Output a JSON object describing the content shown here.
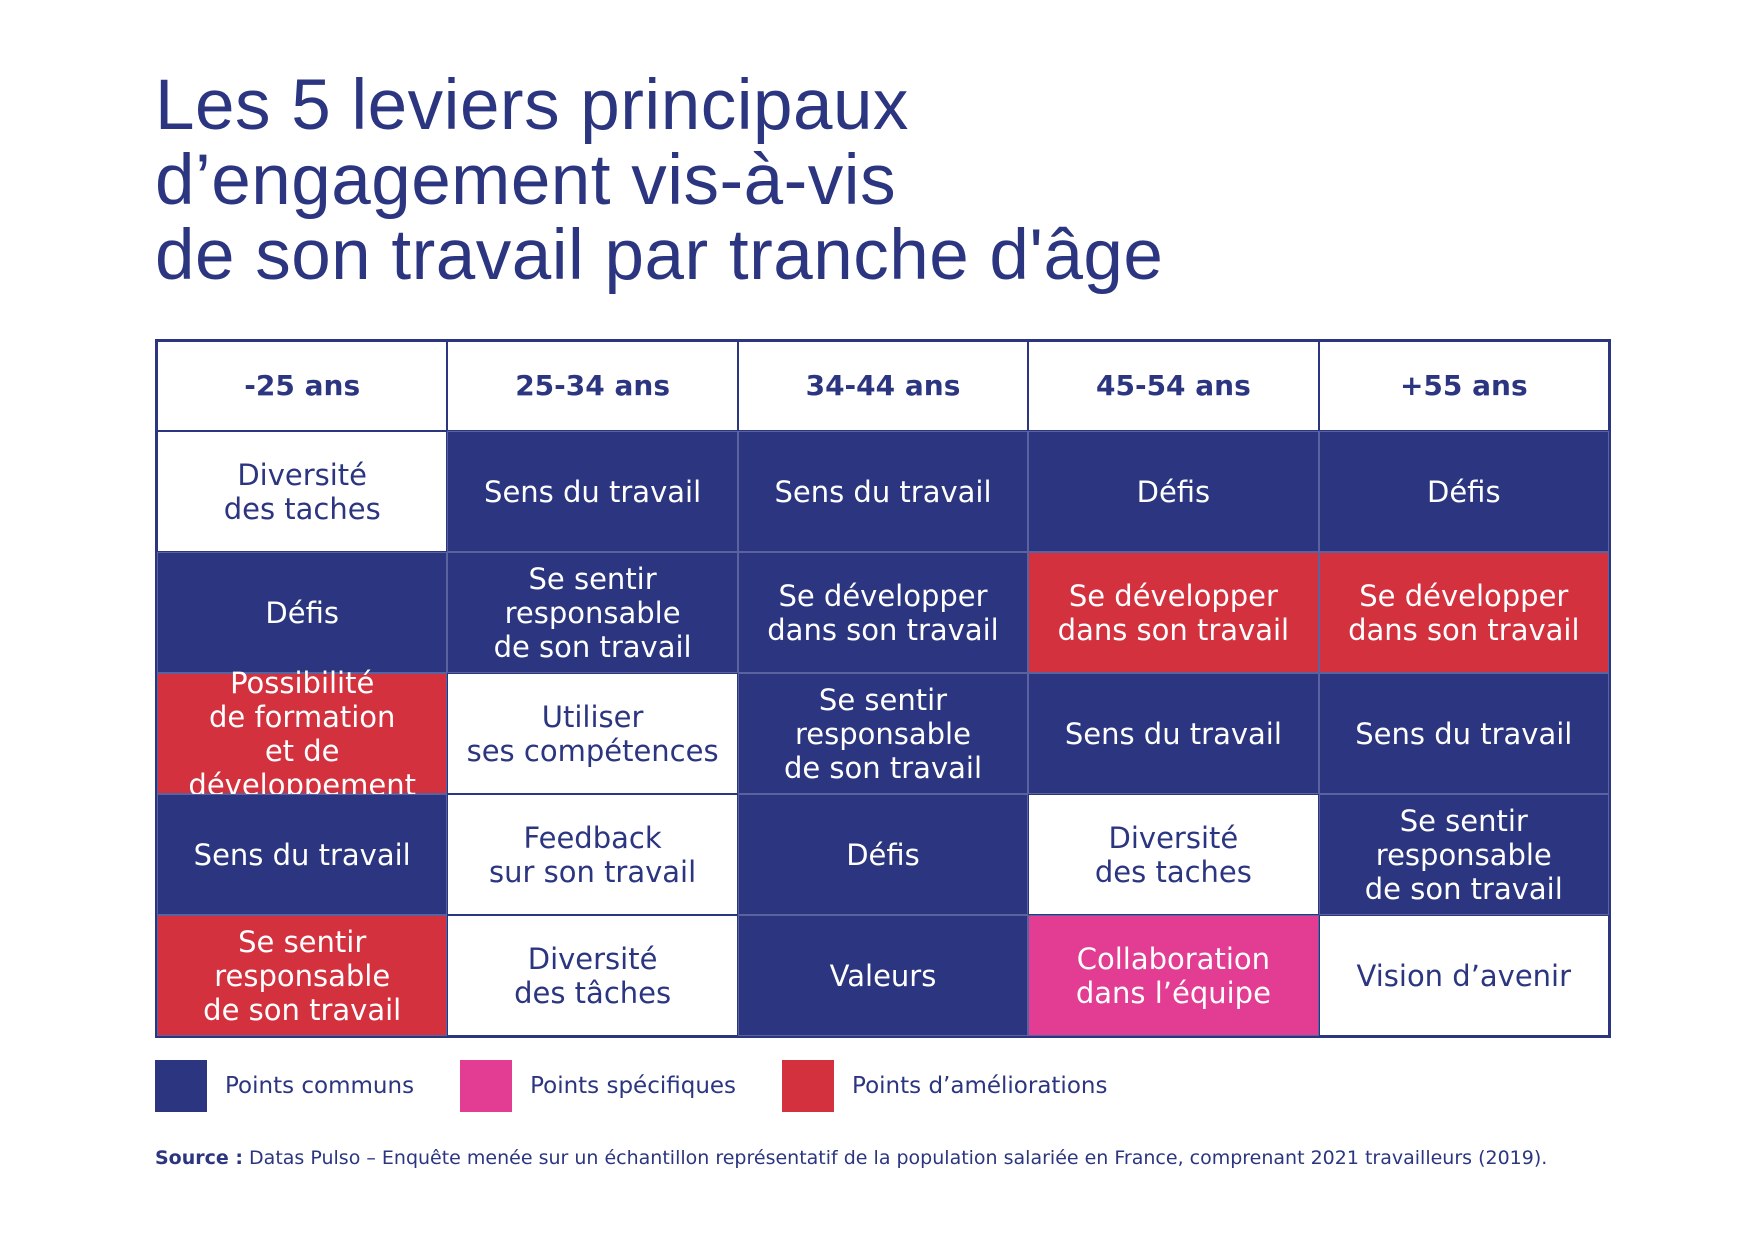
{
  "title": {
    "lines": [
      "Les 5 leviers principaux",
      "d’engagement vis-à-vis",
      "de son travail par tranche d'âge"
    ]
  },
  "colors": {
    "navy": "#2b3580",
    "red": "#d4313f",
    "pink": "#e23c93",
    "white": "#ffffff"
  },
  "table": {
    "headers": [
      "-25 ans",
      "25-34 ans",
      "34-44 ans",
      "45-54 ans",
      "+55 ans"
    ],
    "rows": [
      [
        {
          "text": "Diversité\ndes taches",
          "style": "white"
        },
        {
          "text": "Sens du travail",
          "style": "navy"
        },
        {
          "text": "Sens du travail",
          "style": "navy"
        },
        {
          "text": "Défis",
          "style": "navy"
        },
        {
          "text": "Défis",
          "style": "navy"
        }
      ],
      [
        {
          "text": "Défis",
          "style": "navy"
        },
        {
          "text": "Se sentir\nresponsable\nde son travail",
          "style": "navy"
        },
        {
          "text": "Se développer\ndans son travail",
          "style": "navy"
        },
        {
          "text": "Se développer\ndans son travail",
          "style": "red"
        },
        {
          "text": "Se développer\ndans son travail",
          "style": "red"
        }
      ],
      [
        {
          "text": "Possibilité\nde formation\net de développement",
          "style": "red"
        },
        {
          "text": "Utiliser\nses compétences",
          "style": "white"
        },
        {
          "text": "Se sentir\nresponsable\nde son travail",
          "style": "navy"
        },
        {
          "text": "Sens du travail",
          "style": "navy"
        },
        {
          "text": "Sens du travail",
          "style": "navy"
        }
      ],
      [
        {
          "text": "Sens du travail",
          "style": "navy"
        },
        {
          "text": "Feedback\nsur son travail",
          "style": "white"
        },
        {
          "text": "Défis",
          "style": "navy"
        },
        {
          "text": "Diversité\ndes taches",
          "style": "white"
        },
        {
          "text": "Se sentir\nresponsable\nde son travail",
          "style": "navy"
        }
      ],
      [
        {
          "text": "Se sentir\nresponsable\nde son travail",
          "style": "red"
        },
        {
          "text": "Diversité\ndes tâches",
          "style": "white"
        },
        {
          "text": "Valeurs",
          "style": "navy"
        },
        {
          "text": "Collaboration\ndans l’équipe",
          "style": "pink"
        },
        {
          "text": "Vision d’avenir",
          "style": "white"
        }
      ]
    ]
  },
  "legend": [
    {
      "label": "Points communs",
      "color": "#2b3580"
    },
    {
      "label": "Points spécifiques",
      "color": "#e23c93"
    },
    {
      "label": "Points d’améliorations",
      "color": "#d4313f"
    }
  ],
  "source": {
    "prefix": "Source :",
    "text": " Datas Pulso – Enquête menée sur un échantillon représentatif de la population salariée en France, comprenant 2021 travailleurs (2019)."
  }
}
